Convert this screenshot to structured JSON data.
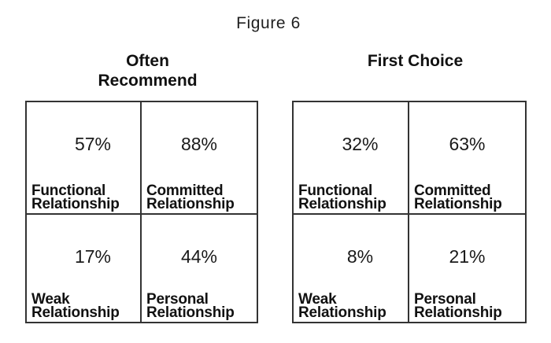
{
  "figure_title": "Figure 6",
  "panels": [
    {
      "title_line1": "Often",
      "title_line2": "Recommend",
      "cells": [
        {
          "percent": "57%",
          "label_line1": "Functional",
          "label_line2": "Relationship"
        },
        {
          "percent": "88%",
          "label_line1": "Committed",
          "label_line2": "Relationship"
        },
        {
          "percent": "17%",
          "label_line1": "Weak",
          "label_line2": "Relationship"
        },
        {
          "percent": "44%",
          "label_line1": "Personal",
          "label_line2": "Relationship"
        }
      ]
    },
    {
      "title_line1": "First Choice",
      "title_line2": "",
      "cells": [
        {
          "percent": "32%",
          "label_line1": "Functional",
          "label_line2": "Relationship"
        },
        {
          "percent": "63%",
          "label_line1": "Committed",
          "label_line2": "Relationship"
        },
        {
          "percent": "8%",
          "label_line1": "Weak",
          "label_line2": "Relationship"
        },
        {
          "percent": "21%",
          "label_line1": "Personal",
          "label_line2": "Relationship"
        }
      ]
    }
  ],
  "colors": {
    "text": "#1a1a1a",
    "border": "#333333",
    "background": "#ffffff"
  },
  "chart_data": [
    {
      "type": "table",
      "title": "Often Recommend",
      "quadrant_labels": [
        [
          "Functional Relationship",
          "Committed Relationship"
        ],
        [
          "Weak Relationship",
          "Personal Relationship"
        ]
      ],
      "values_percent": [
        [
          57,
          88
        ],
        [
          17,
          44
        ]
      ]
    },
    {
      "type": "table",
      "title": "First Choice",
      "quadrant_labels": [
        [
          "Functional Relationship",
          "Committed Relationship"
        ],
        [
          "Weak Relationship",
          "Personal Relationship"
        ]
      ],
      "values_percent": [
        [
          32,
          63
        ],
        [
          8,
          21
        ]
      ]
    }
  ]
}
